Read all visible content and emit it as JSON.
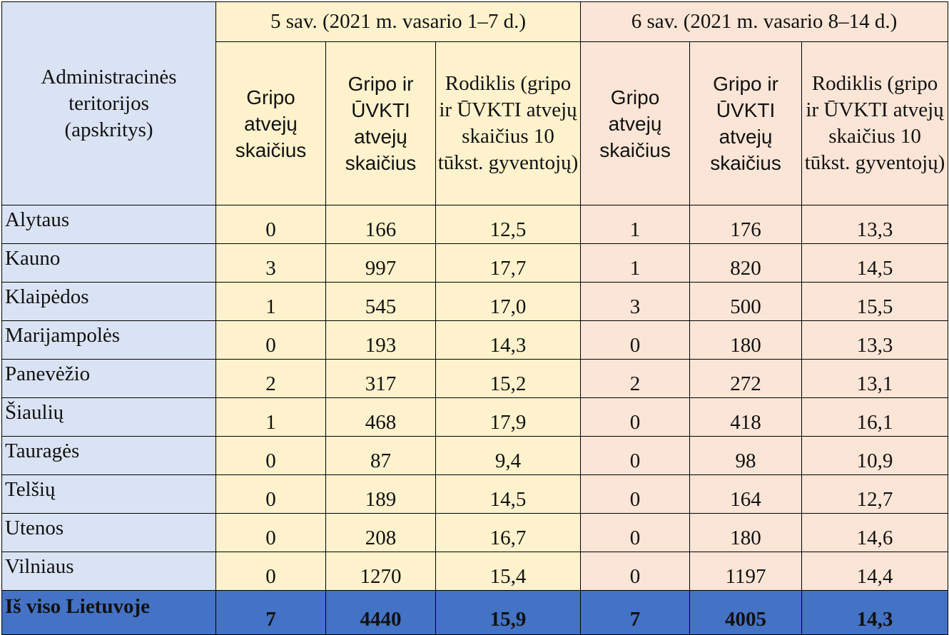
{
  "header": {
    "region_label": "Administracinės teritorijos (apskritys)",
    "week5": "5 sav. (2021 m. vasario 1–7 d.)",
    "week6": "6 sav. (2021 m. vasario 8–14 d.)",
    "col_gripo": "Gripo atvejų skaičius",
    "col_gripo_uvkti": "Gripo ir ŪVKTI atvejų skaičius",
    "col_rodiklis": "Rodiklis (gripo ir ŪVKTI atvejų skaičius 10 tūkst. gyventojų)"
  },
  "rows": [
    {
      "name": "Alytaus",
      "w5_gripo": "0",
      "w5_total": "166",
      "w5_rate": "12,5",
      "w6_gripo": "1",
      "w6_total": "176",
      "w6_rate": "13,3"
    },
    {
      "name": "Kauno",
      "w5_gripo": "3",
      "w5_total": "997",
      "w5_rate": "17,7",
      "w6_gripo": "1",
      "w6_total": "820",
      "w6_rate": "14,5"
    },
    {
      "name": "Klaipėdos",
      "w5_gripo": "1",
      "w5_total": "545",
      "w5_rate": "17,0",
      "w6_gripo": "3",
      "w6_total": "500",
      "w6_rate": "15,5"
    },
    {
      "name": "Marijampolės",
      "w5_gripo": "0",
      "w5_total": "193",
      "w5_rate": "14,3",
      "w6_gripo": "0",
      "w6_total": "180",
      "w6_rate": "13,3"
    },
    {
      "name": "Panevėžio",
      "w5_gripo": "2",
      "w5_total": "317",
      "w5_rate": "15,2",
      "w6_gripo": "2",
      "w6_total": "272",
      "w6_rate": "13,1"
    },
    {
      "name": "Šiaulių",
      "w5_gripo": "1",
      "w5_total": "468",
      "w5_rate": "17,9",
      "w6_gripo": "0",
      "w6_total": "418",
      "w6_rate": "16,1"
    },
    {
      "name": "Tauragės",
      "w5_gripo": "0",
      "w5_total": "87",
      "w5_rate": "9,4",
      "w6_gripo": "0",
      "w6_total": "98",
      "w6_rate": "10,9"
    },
    {
      "name": "Telšių",
      "w5_gripo": "0",
      "w5_total": "189",
      "w5_rate": "14,5",
      "w6_gripo": "0",
      "w6_total": "164",
      "w6_rate": "12,7"
    },
    {
      "name": "Utenos",
      "w5_gripo": "0",
      "w5_total": "208",
      "w5_rate": "16,7",
      "w6_gripo": "0",
      "w6_total": "180",
      "w6_rate": "14,6"
    },
    {
      "name": "Vilniaus",
      "w5_gripo": "0",
      "w5_total": "1270",
      "w5_rate": "15,4",
      "w6_gripo": "0",
      "w6_total": "1197",
      "w6_rate": "14,4"
    }
  ],
  "total": {
    "name": "Iš viso Lietuvoje",
    "w5_gripo": "7",
    "w5_total": "4440",
    "w5_rate": "15,9",
    "w6_gripo": "7",
    "w6_total": "4005",
    "w6_rate": "14,3"
  },
  "colors": {
    "region": "#dae3f3",
    "week5": "#fff2cc",
    "week6": "#fbe5d6",
    "total": "#4472c4"
  }
}
